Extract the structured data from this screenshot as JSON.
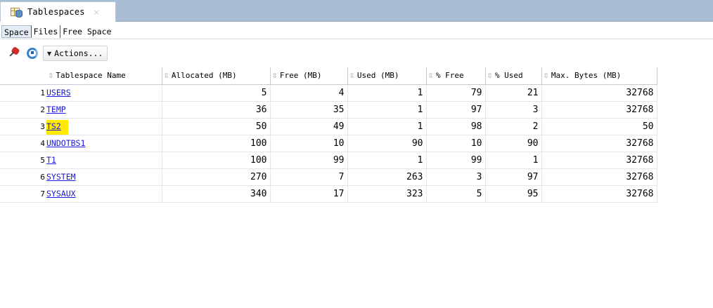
{
  "window": {
    "tab_title": "Tablespaces",
    "close_glyph": "×"
  },
  "subtabs": [
    "Space",
    "Files",
    "Free Space"
  ],
  "toolbar": {
    "actions_label": "Actions...",
    "caret": "▼"
  },
  "table": {
    "sort_glyph": "⇳",
    "columns": [
      "Tablespace Name",
      "Allocated (MB)",
      "Free (MB)",
      "Used (MB)",
      "% Free",
      "% Used",
      "Max. Bytes (MB)"
    ],
    "rows": [
      {
        "n": "1",
        "name": "USERS",
        "allocated": "5",
        "free": "4",
        "used": "1",
        "pct_free": "79",
        "pct_used": "21",
        "max": "32768"
      },
      {
        "n": "2",
        "name": "TEMP",
        "allocated": "36",
        "free": "35",
        "used": "1",
        "pct_free": "97",
        "pct_used": "3",
        "max": "32768"
      },
      {
        "n": "3",
        "name": "TS2",
        "allocated": "50",
        "free": "49",
        "used": "1",
        "pct_free": "98",
        "pct_used": "2",
        "max": "50"
      },
      {
        "n": "4",
        "name": "UNDOTBS1",
        "allocated": "100",
        "free": "10",
        "used": "90",
        "pct_free": "10",
        "pct_used": "90",
        "max": "32768"
      },
      {
        "n": "5",
        "name": "T1",
        "allocated": "100",
        "free": "99",
        "used": "1",
        "pct_free": "99",
        "pct_used": "1",
        "max": "32768"
      },
      {
        "n": "6",
        "name": "SYSTEM",
        "allocated": "270",
        "free": "7",
        "used": "263",
        "pct_free": "3",
        "pct_used": "97",
        "max": "32768"
      },
      {
        "n": "7",
        "name": "SYSAUX",
        "allocated": "340",
        "free": "17",
        "used": "323",
        "pct_free": "5",
        "pct_used": "95",
        "max": "32768"
      }
    ],
    "highlighted_row": "TS2",
    "highlight_color": "#ffeb00",
    "link_color": "#1a1ad2"
  }
}
